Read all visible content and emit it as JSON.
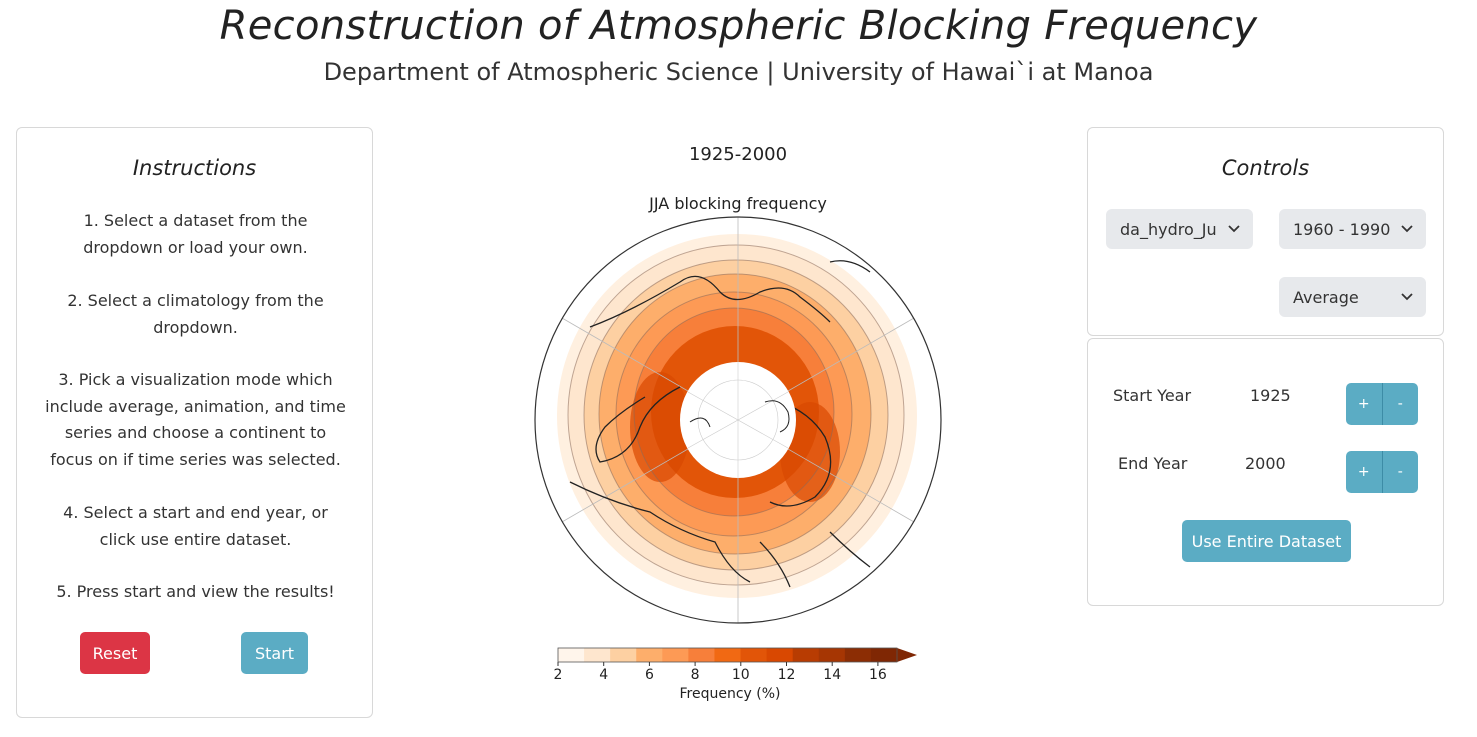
{
  "header": {
    "title": "Reconstruction of Atmospheric Blocking Frequency",
    "subtitle": "Department of Atmospheric Science | University of Hawai`i at Manoa"
  },
  "instructions": {
    "title": "Instructions",
    "steps": [
      "1. Select a dataset from the dropdown or load your own.",
      "2. Select a climatology from the dropdown.",
      "3. Pick a visualization mode which include average, animation, and time series and choose a continent to focus on if time series was selected.",
      "4. Select a start and end year, or click use entire dataset.",
      "5. Press start and view the results!"
    ],
    "reset_label": "Reset",
    "start_label": "Start"
  },
  "map": {
    "period_label": "1925-2000",
    "title": "JJA blocking frequency",
    "colorbar": {
      "label": "Frequency (%)",
      "ticks": [
        "2",
        "4",
        "6",
        "8",
        "10",
        "12",
        "14",
        "16"
      ],
      "colors": [
        "#fff5eb",
        "#fee6ce",
        "#fdd0a2",
        "#fdae6b",
        "#fd9a55",
        "#f77f3a",
        "#f16913",
        "#e25508",
        "#d94801",
        "#b83c02",
        "#a63603",
        "#8c2d04",
        "#7f2704"
      ]
    }
  },
  "controls": {
    "title": "Controls",
    "dataset_select": "da_hydro_Ju",
    "climatology_select": "1960 - 1990",
    "mode_select": "Average"
  },
  "years": {
    "start_label": "Start Year",
    "start_value": "1925",
    "end_label": "End Year",
    "end_value": "2000",
    "plus": "+",
    "minus": "-",
    "entire_label": "Use Entire Dataset"
  },
  "colors": {
    "accent": "#5bacc4",
    "danger": "#dc3545"
  }
}
